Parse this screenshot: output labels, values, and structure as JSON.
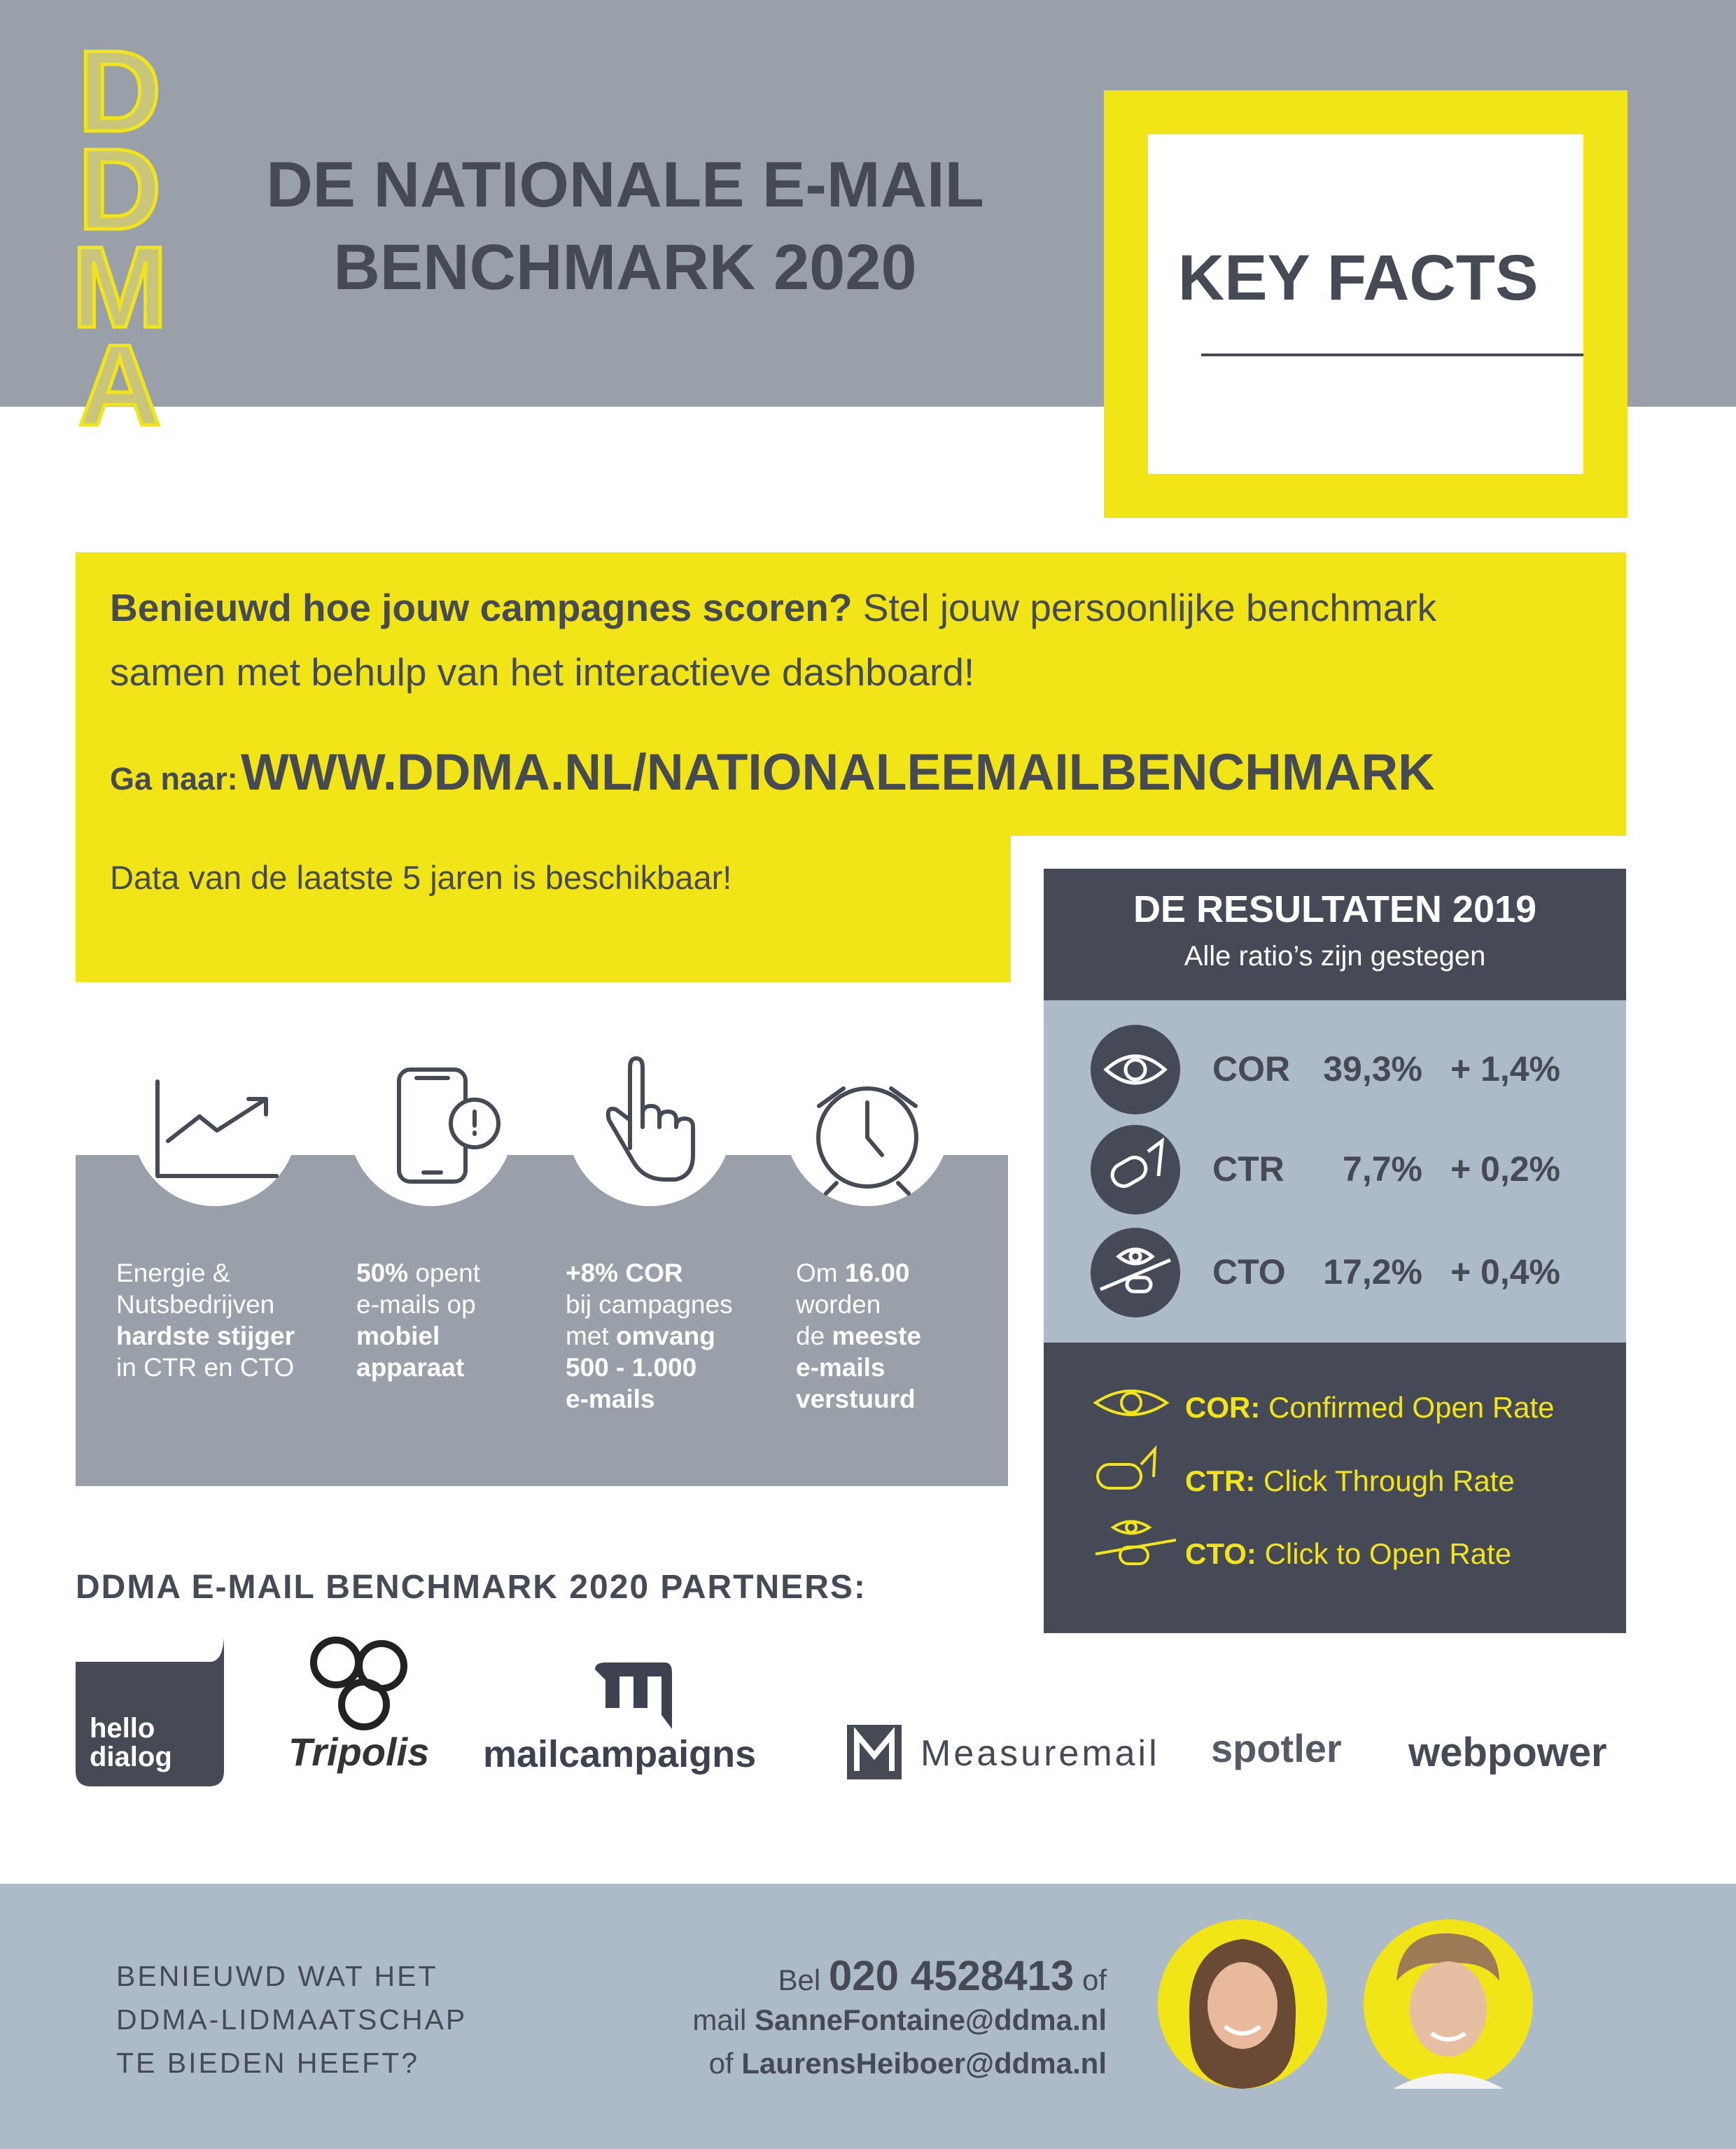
{
  "header": {
    "logo": "DDMA",
    "title_line1": "DE NATIONALE E-MAIL",
    "title_line2": "BENCHMARK 2020",
    "badge": "KEY FACTS"
  },
  "intro": {
    "question": "Benieuwd hoe jouw campagnes scoren?",
    "text_line1": "Stel jouw persoonlijke benchmark",
    "text_line2": "samen met behulp van het interactieve dashboard!",
    "link_label": "Ga naar:",
    "link": "WWW.DDMA.NL/NATIONALEEMAILBENCHMARK",
    "note": "Data van de laatste 5 jaren is beschikbaar!"
  },
  "facts": [
    {
      "lines": [
        [
          {
            "t": "Energie &",
            "bold": false
          }
        ],
        [
          {
            "t": "Nutsbedrijven",
            "bold": false
          }
        ],
        [
          {
            "t": "hardste stijger",
            "bold": true
          }
        ],
        [
          {
            "t": "in CTR en CTO",
            "bold": false
          }
        ]
      ]
    },
    {
      "lines": [
        [
          {
            "t": "50%",
            "bold": true
          },
          {
            "t": " opent",
            "bold": false
          }
        ],
        [
          {
            "t": "e-mails op",
            "bold": false
          }
        ],
        [
          {
            "t": "mobiel",
            "bold": true
          }
        ],
        [
          {
            "t": "apparaat",
            "bold": true
          }
        ]
      ]
    },
    {
      "lines": [
        [
          {
            "t": "+8% COR",
            "bold": true
          }
        ],
        [
          {
            "t": "bij campagnes",
            "bold": false
          }
        ],
        [
          {
            "t": "met ",
            "bold": false
          },
          {
            "t": "omvang",
            "bold": true
          }
        ],
        [
          {
            "t": "500 - 1.000",
            "bold": true
          }
        ],
        [
          {
            "t": "e-mails",
            "bold": true
          }
        ]
      ]
    },
    {
      "lines": [
        [
          {
            "t": "Om ",
            "bold": false
          },
          {
            "t": "16.00",
            "bold": true
          }
        ],
        [
          {
            "t": "worden",
            "bold": false
          }
        ],
        [
          {
            "t": "de ",
            "bold": false
          },
          {
            "t": "meeste",
            "bold": true
          }
        ],
        [
          {
            "t": "e-mails",
            "bold": true
          }
        ],
        [
          {
            "t": "verstuurd",
            "bold": true
          }
        ]
      ]
    }
  ],
  "results": {
    "title": "DE RESULTATEN 2019",
    "subtitle": "Alle ratio’s zijn gestegen",
    "rows": [
      {
        "metric": "COR",
        "value": "39,3%",
        "change": "+ 1,4%"
      },
      {
        "metric": "CTR",
        "value": "7,7%",
        "change": "+ 0,2%"
      },
      {
        "metric": "CTO",
        "value": "17,2%",
        "change": "+ 0,4%"
      }
    ],
    "legend": [
      {
        "abbr": "COR:",
        "label": "Confirmed Open Rate"
      },
      {
        "abbr": "CTR:",
        "label": "Click Through Rate"
      },
      {
        "abbr": "CTO:",
        "label": "Click to Open Rate"
      }
    ]
  },
  "partners": {
    "title": "DDMA E-MAIL BENCHMARK 2020 PARTNERS:",
    "logos": [
      "hello",
      "dialog",
      "Tripolis",
      "mailcampaigns",
      "Measuremail",
      "spotler",
      "webpower"
    ]
  },
  "footer": {
    "question": [
      "BENIEUWD WAT HET",
      "DDMA-LIDMAATSCHAP",
      "TE BIEDEN HEEFT?"
    ],
    "contact": [
      {
        "pre": "Bel",
        "main": "020 4528413",
        "post": "of"
      },
      {
        "pre": "mail",
        "main": "SanneFontaine@ddma.nl"
      },
      {
        "pre": "of",
        "main": "LaurensHeiboer@ddma.nl"
      }
    ]
  }
}
